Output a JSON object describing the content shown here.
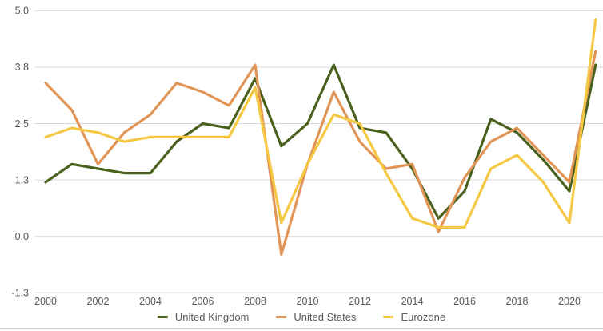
{
  "chart_data": {
    "type": "line",
    "title": "",
    "xlabel": "",
    "ylabel": "",
    "x": [
      2000,
      2001,
      2002,
      2003,
      2004,
      2005,
      2006,
      2007,
      2008,
      2009,
      2010,
      2011,
      2012,
      2013,
      2014,
      2015,
      2016,
      2017,
      2018,
      2019,
      2020,
      2021
    ],
    "x_ticks": [
      2000,
      2002,
      2004,
      2006,
      2008,
      2010,
      2012,
      2014,
      2016,
      2018,
      2020
    ],
    "x_tick_labels": [
      "2000",
      "2002",
      "2004",
      "2006",
      "2008",
      "2010",
      "2012",
      "2014",
      "2016",
      "2018",
      "2020"
    ],
    "y_tick_values": [
      5.0,
      3.75,
      2.5,
      1.25,
      0.0,
      -1.25
    ],
    "y_tick_labels": [
      "5.0",
      "3.8",
      "2.5",
      "1.3",
      "0.0",
      "-1.3"
    ],
    "ylim": [
      -1.25,
      5.0
    ],
    "grid": "horizontal",
    "legend_position": "bottom",
    "series": [
      {
        "name": "United Kingdom",
        "color": "#4A611E",
        "values": [
          1.2,
          1.6,
          1.5,
          1.4,
          1.4,
          2.1,
          2.5,
          2.4,
          3.5,
          2.0,
          2.5,
          3.8,
          2.4,
          2.3,
          1.5,
          0.4,
          1.0,
          2.6,
          2.3,
          1.7,
          1.0,
          3.8
        ]
      },
      {
        "name": "United States",
        "color": "#E09556",
        "values": [
          3.4,
          2.8,
          1.6,
          2.3,
          2.7,
          3.4,
          3.2,
          2.9,
          3.8,
          -0.4,
          1.6,
          3.2,
          2.1,
          1.5,
          1.6,
          0.1,
          1.3,
          2.1,
          2.4,
          1.8,
          1.2,
          4.1
        ]
      },
      {
        "name": "Eurozone",
        "color": "#F4C842",
        "values": [
          2.2,
          2.4,
          2.3,
          2.1,
          2.2,
          2.2,
          2.2,
          2.2,
          3.3,
          0.3,
          1.6,
          2.7,
          2.5,
          1.4,
          0.4,
          0.2,
          0.2,
          1.5,
          1.8,
          1.2,
          0.3,
          4.8
        ]
      }
    ],
    "colors": {
      "grid": "#D9D9D9",
      "tick_text": "#595959",
      "background": "#FFFFFF"
    }
  }
}
